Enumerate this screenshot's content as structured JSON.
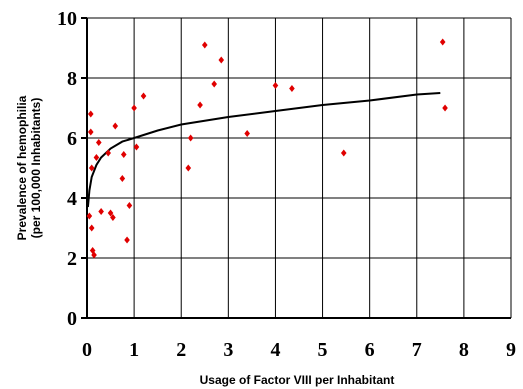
{
  "chart_data": {
    "type": "scatter",
    "xlabel": "Usage of Factor VIII per Inhabitant",
    "ylabel_line1": "Prevalence of hemophilia",
    "ylabel_line2": "(per 100,000 Inhabitants)",
    "xlim": [
      0,
      9
    ],
    "ylim": [
      0,
      10
    ],
    "x_ticks": [
      "0",
      "1",
      "2",
      "3",
      "4",
      "5",
      "6",
      "7",
      "8",
      "9"
    ],
    "y_ticks": [
      "0",
      "2",
      "4",
      "6",
      "8",
      "10"
    ],
    "grid": true,
    "marker_color": "#e00000",
    "points": [
      {
        "x": 0.05,
        "y": 3.4
      },
      {
        "x": 0.08,
        "y": 6.8
      },
      {
        "x": 0.08,
        "y": 6.2
      },
      {
        "x": 0.1,
        "y": 5.0
      },
      {
        "x": 0.1,
        "y": 3.0
      },
      {
        "x": 0.12,
        "y": 2.25
      },
      {
        "x": 0.15,
        "y": 2.1
      },
      {
        "x": 0.2,
        "y": 5.35
      },
      {
        "x": 0.25,
        "y": 5.85
      },
      {
        "x": 0.3,
        "y": 3.55
      },
      {
        "x": 0.45,
        "y": 5.5
      },
      {
        "x": 0.5,
        "y": 3.5
      },
      {
        "x": 0.55,
        "y": 3.35
      },
      {
        "x": 0.6,
        "y": 6.4
      },
      {
        "x": 0.75,
        "y": 4.65
      },
      {
        "x": 0.78,
        "y": 5.45
      },
      {
        "x": 0.85,
        "y": 2.6
      },
      {
        "x": 0.9,
        "y": 3.75
      },
      {
        "x": 1.0,
        "y": 7.0
      },
      {
        "x": 1.05,
        "y": 5.7
      },
      {
        "x": 1.2,
        "y": 7.4
      },
      {
        "x": 2.15,
        "y": 5.0
      },
      {
        "x": 2.2,
        "y": 6.0
      },
      {
        "x": 2.4,
        "y": 7.1
      },
      {
        "x": 2.5,
        "y": 9.1
      },
      {
        "x": 2.7,
        "y": 7.8
      },
      {
        "x": 2.85,
        "y": 8.6
      },
      {
        "x": 3.4,
        "y": 6.15
      },
      {
        "x": 4.0,
        "y": 7.75
      },
      {
        "x": 4.35,
        "y": 7.65
      },
      {
        "x": 5.45,
        "y": 5.5
      },
      {
        "x": 7.55,
        "y": 9.2
      },
      {
        "x": 7.6,
        "y": 7.0
      }
    ],
    "trendline": {
      "type": "logarithmic",
      "x": [
        0.02,
        0.05,
        0.1,
        0.2,
        0.3,
        0.5,
        0.75,
        1.0,
        1.5,
        2.0,
        3.0,
        4.0,
        5.0,
        6.0,
        7.0,
        7.5
      ],
      "y": [
        3.7,
        4.25,
        4.7,
        5.1,
        5.35,
        5.65,
        5.88,
        6.0,
        6.25,
        6.45,
        6.7,
        6.9,
        7.1,
        7.25,
        7.45,
        7.5
      ]
    }
  }
}
